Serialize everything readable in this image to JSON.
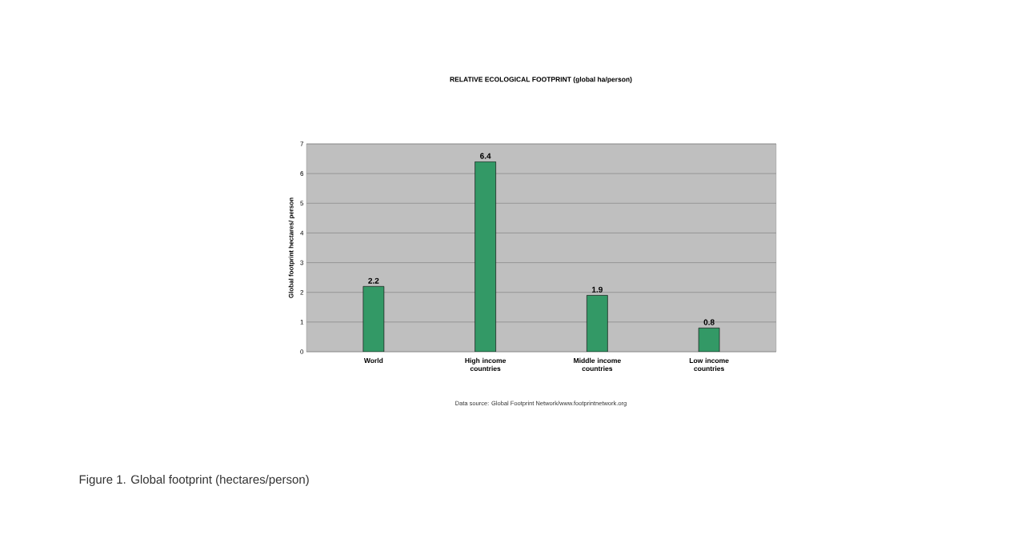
{
  "chart_data": {
    "type": "bar",
    "title": "RELATIVE ECOLOGICAL FOOTPRINT (global ha/person)",
    "ylabel": "Global footprint hectares/ person",
    "categories": [
      "World",
      "High income countries",
      "Middle income countries",
      "Low income countries"
    ],
    "values": [
      2.2,
      6.4,
      1.9,
      0.8
    ],
    "color": "#339966",
    "ylim": [
      0,
      7
    ],
    "yticks": [
      0,
      1,
      2,
      3,
      4,
      5,
      6,
      7
    ],
    "grid": "y",
    "data_labels": true,
    "annotations": [
      "Data source: Global Footprint Network/www.footprintnetwork.org",
      "Figure 1. Global footprint (hectares/person)"
    ]
  }
}
